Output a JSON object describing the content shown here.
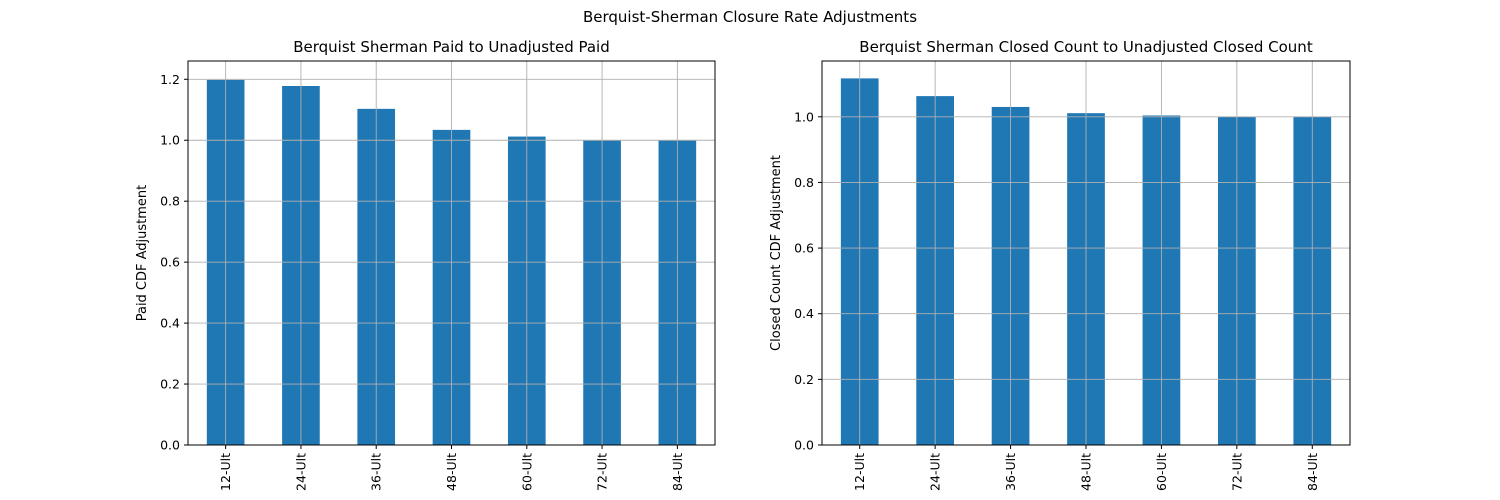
{
  "figure": {
    "suptitle": "Berquist-Sherman Closure Rate Adjustments",
    "bar_color": "#1f77b4",
    "grid_color": "#b0b0b0"
  },
  "chart_data": [
    {
      "type": "bar",
      "title": "Berquist Sherman Paid to Unadjusted Paid",
      "xlabel": "",
      "ylabel": "Paid CDF Adjustment",
      "categories": [
        "12-Ult",
        "24-Ult",
        "36-Ult",
        "48-Ult",
        "60-Ult",
        "72-Ult",
        "84-Ult"
      ],
      "values": [
        1.198,
        1.178,
        1.103,
        1.034,
        1.012,
        1.0,
        1.0
      ],
      "ylim": [
        0,
        1.26
      ],
      "yticks": [
        0.0,
        0.2,
        0.4,
        0.6,
        0.8,
        1.0,
        1.2
      ],
      "ytick_labels": [
        "0.0",
        "0.2",
        "0.4",
        "0.6",
        "0.8",
        "1.0",
        "1.2"
      ],
      "grid": true,
      "legend": "none"
    },
    {
      "type": "bar",
      "title": "Berquist Sherman Closed Count to Unadjusted Closed Count",
      "xlabel": "",
      "ylabel": "Closed Count CDF Adjustment",
      "categories": [
        "12-Ult",
        "24-Ult",
        "36-Ult",
        "48-Ult",
        "60-Ult",
        "72-Ult",
        "84-Ult"
      ],
      "values": [
        1.117,
        1.063,
        1.03,
        1.011,
        1.004,
        1.0,
        1.0
      ],
      "ylim": [
        0,
        1.17
      ],
      "yticks": [
        0.0,
        0.2,
        0.4,
        0.6,
        0.8,
        1.0
      ],
      "ytick_labels": [
        "0.0",
        "0.2",
        "0.4",
        "0.6",
        "0.8",
        "1.0"
      ],
      "grid": true,
      "legend": "none"
    }
  ]
}
